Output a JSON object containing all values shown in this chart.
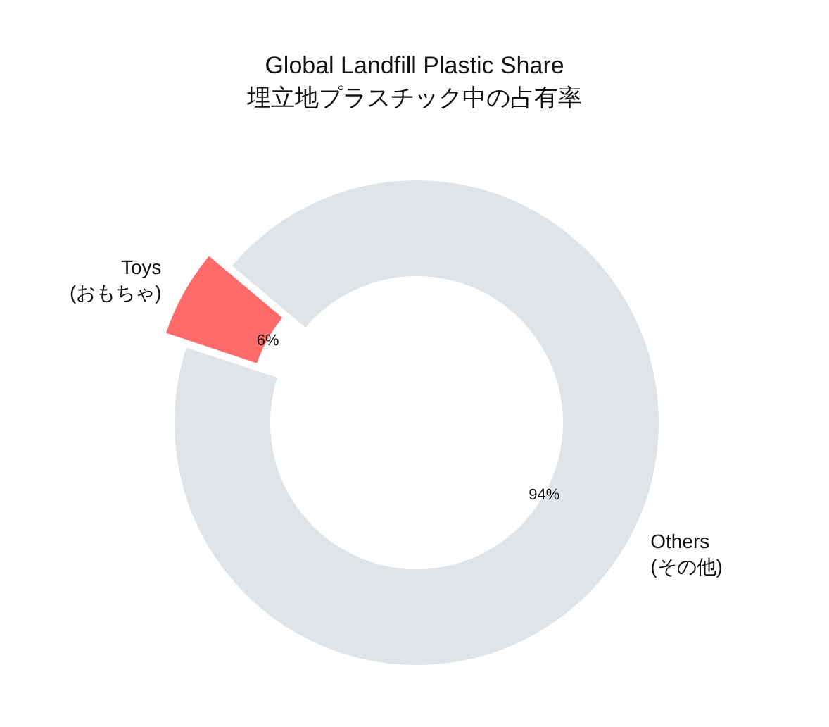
{
  "chart_data": {
    "type": "donut",
    "title": "Global Landfill Plastic Share",
    "subtitle": "埋立地プラスチック中の占有率",
    "categories": [
      "Toys\n(おもちゃ)",
      "Others\n(その他)"
    ],
    "values": [
      6,
      94
    ],
    "colors": [
      "#ff6b6b",
      "#dee4e7"
    ],
    "value_labels": [
      "6%",
      "94%"
    ],
    "legend": false
  }
}
